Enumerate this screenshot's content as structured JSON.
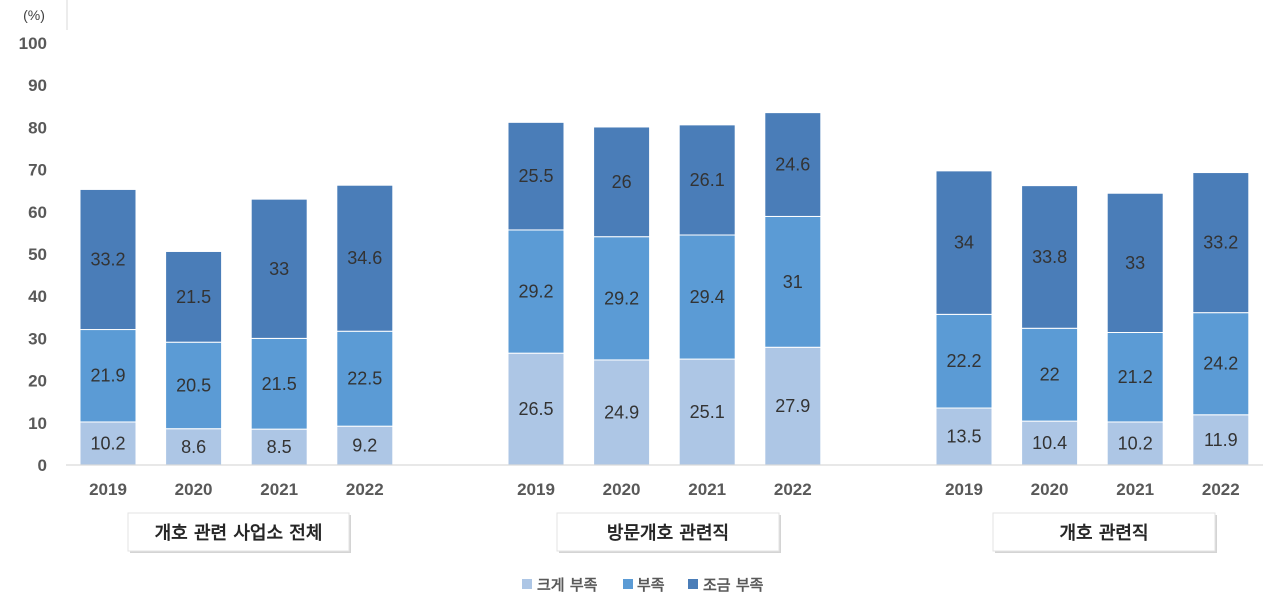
{
  "chart_data": {
    "type": "bar",
    "stacked": true,
    "y_unit": "(%)",
    "ylim": [
      0,
      100
    ],
    "yticks": [
      0,
      10,
      20,
      30,
      40,
      50,
      60,
      70,
      80,
      90,
      100
    ],
    "categories": [
      "2019",
      "2020",
      "2021",
      "2022"
    ],
    "groups": [
      "개호 관련 사업소 전체",
      "방문개호 관련직",
      "개호 관련직"
    ],
    "series": [
      {
        "name": "크게 부족",
        "color": "#adc6e5",
        "values": [
          [
            10.2,
            8.6,
            8.5,
            9.2
          ],
          [
            26.5,
            24.9,
            25.1,
            27.9
          ],
          [
            13.5,
            10.4,
            10.2,
            11.9
          ]
        ]
      },
      {
        "name": "부족",
        "color": "#5b9bd5",
        "values": [
          [
            21.9,
            20.5,
            21.5,
            22.5
          ],
          [
            29.2,
            29.2,
            29.4,
            31
          ],
          [
            22.2,
            22,
            21.2,
            24.2
          ]
        ]
      },
      {
        "name": "조금 부족",
        "color": "#4a7db8",
        "values": [
          [
            33.2,
            21.5,
            33,
            34.6
          ],
          [
            25.5,
            26,
            26.1,
            24.6
          ],
          [
            34,
            33.8,
            33,
            33.2
          ]
        ]
      }
    ],
    "data_labels": true,
    "legend_position": "bottom",
    "grid": false
  }
}
